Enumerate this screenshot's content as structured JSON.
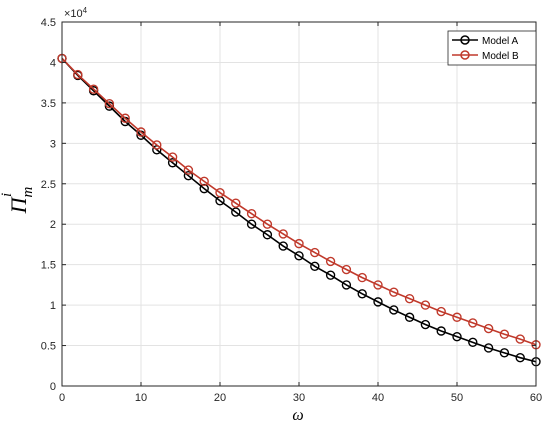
{
  "chart_data": {
    "type": "line",
    "xlabel": "ω",
    "ylabel_base": "Π",
    "ylabel_sup": "i",
    "ylabel_sub": "m",
    "y_exponent_label": "×10",
    "y_exponent_power": "4",
    "xlim": [
      0,
      60
    ],
    "ylim": [
      0,
      4.5
    ],
    "x_ticks": [
      0,
      10,
      20,
      30,
      40,
      50,
      60
    ],
    "y_ticks": [
      0,
      0.5,
      1,
      1.5,
      2,
      2.5,
      3,
      3.5,
      4,
      4.5
    ],
    "grid": true,
    "legend_position": "top-right",
    "x": [
      0,
      2,
      4,
      6,
      8,
      10,
      12,
      14,
      16,
      18,
      20,
      22,
      24,
      26,
      28,
      30,
      32,
      34,
      36,
      38,
      40,
      42,
      44,
      46,
      48,
      50,
      52,
      54,
      56,
      58,
      60
    ],
    "series": [
      {
        "name": "Model A",
        "color": "#000000",
        "values": [
          4.05,
          3.84,
          3.65,
          3.46,
          3.27,
          3.1,
          2.92,
          2.76,
          2.6,
          2.44,
          2.29,
          2.15,
          2.0,
          1.87,
          1.73,
          1.61,
          1.48,
          1.37,
          1.25,
          1.14,
          1.04,
          0.94,
          0.85,
          0.76,
          0.68,
          0.61,
          0.54,
          0.47,
          0.41,
          0.35,
          0.3
        ]
      },
      {
        "name": "Model B",
        "color": "#c0392b",
        "values": [
          4.05,
          3.85,
          3.67,
          3.49,
          3.31,
          3.14,
          2.98,
          2.83,
          2.67,
          2.53,
          2.39,
          2.26,
          2.13,
          2.0,
          1.88,
          1.76,
          1.65,
          1.54,
          1.44,
          1.34,
          1.25,
          1.16,
          1.08,
          1.0,
          0.92,
          0.85,
          0.78,
          0.71,
          0.64,
          0.58,
          0.51
        ]
      }
    ]
  }
}
